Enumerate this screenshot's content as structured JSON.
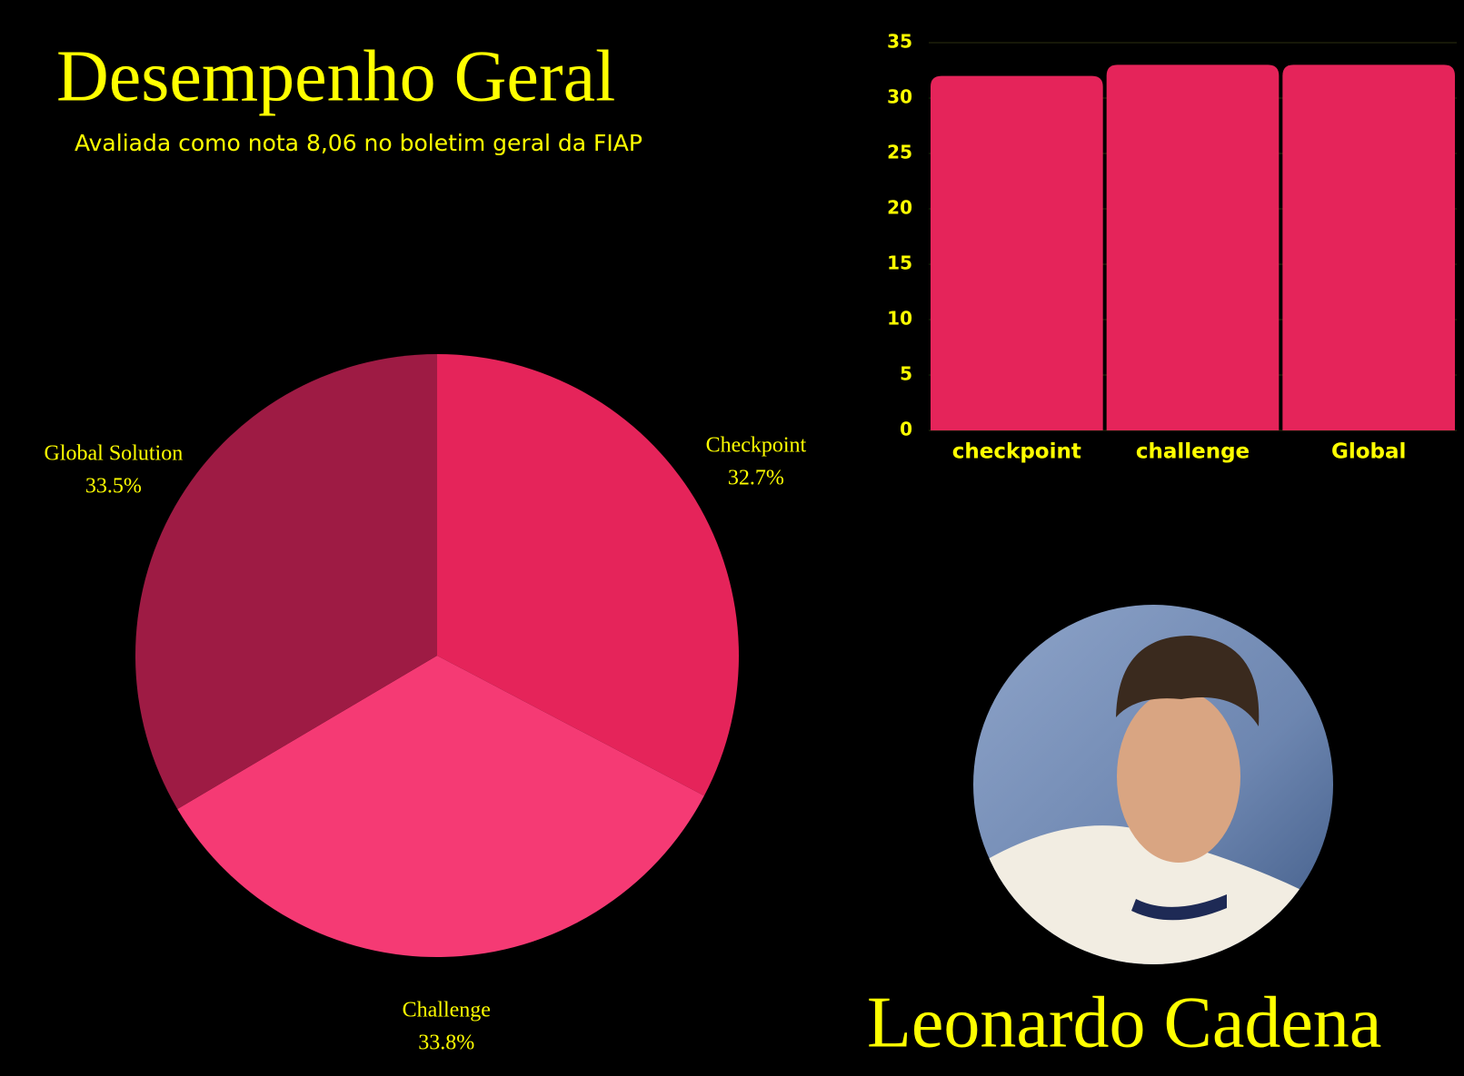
{
  "header": {
    "title": "Desempenho Geral",
    "subtitle": "Avaliada como nota 8,06 no boletim geral da FIAP"
  },
  "chart_data": [
    {
      "type": "bar",
      "categories": [
        "checkpoint",
        "challenge",
        "Global"
      ],
      "values": [
        32,
        33,
        33
      ],
      "color": "#e5245a",
      "ylim": [
        0,
        35
      ],
      "yticks": [
        0,
        5,
        10,
        15,
        20,
        25,
        30,
        35
      ],
      "grid": true
    },
    {
      "type": "pie",
      "categories": [
        "Checkpoint",
        "Challenge",
        "Global Solution"
      ],
      "values": [
        32.7,
        33.8,
        33.5
      ],
      "value_labels": [
        "32.7%",
        "33.8%",
        "33.5%"
      ],
      "colors": [
        "#e5245a",
        "#f53a74",
        "#9e1b44"
      ]
    }
  ],
  "profile": {
    "name": "Leonardo Cadena"
  }
}
